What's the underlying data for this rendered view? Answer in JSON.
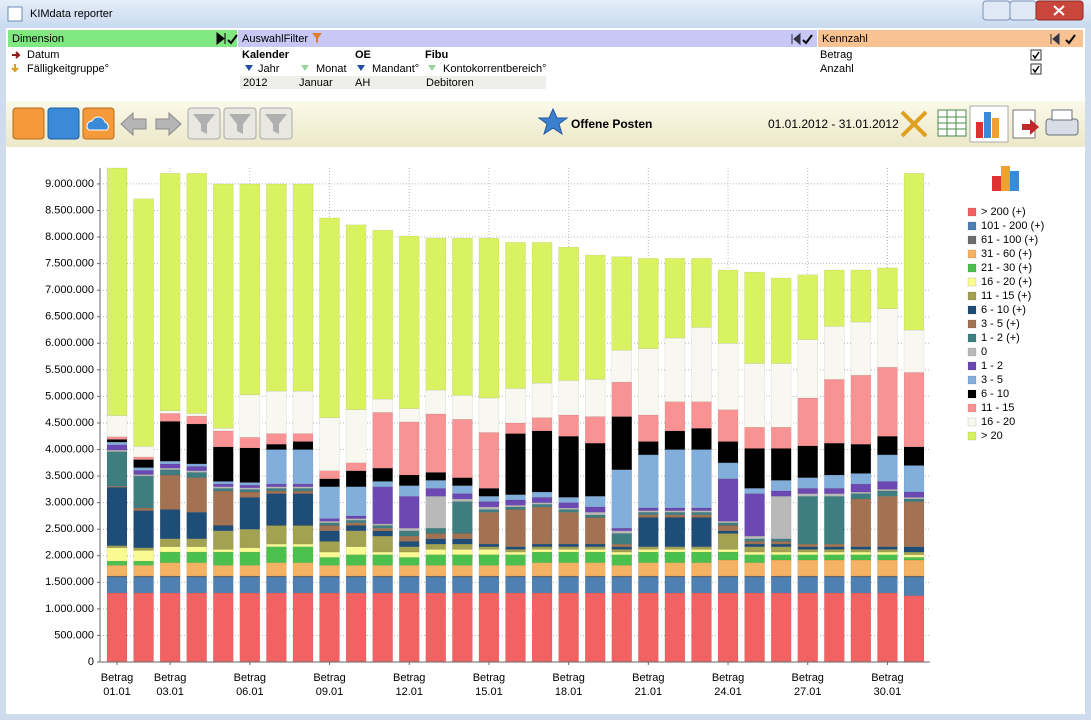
{
  "window": {
    "title": "KIMdata reporter"
  },
  "dimension": {
    "header": "Dimension",
    "items": [
      "Datum",
      "Fälligkeitgruppe°"
    ]
  },
  "filter": {
    "header": "AuswahlFilter",
    "groups": [
      {
        "title": "Kalender",
        "fields": [
          {
            "name": "Jahr",
            "value": "2012"
          },
          {
            "name": "Monat",
            "value": "Januar"
          }
        ]
      },
      {
        "title": "OE",
        "fields": [
          {
            "name": "Mandant°",
            "value": "AH"
          }
        ]
      },
      {
        "title": "Fibu",
        "fields": [
          {
            "name": "Kontokorrentbereich°",
            "value": "Debitoren"
          }
        ]
      }
    ]
  },
  "kennzahl": {
    "header": "Kennzahl",
    "items": [
      "Betrag",
      "Anzahl"
    ]
  },
  "toolbar": {
    "report": "Offene Posten",
    "period": "01.01.2012 - 31.01.2012"
  },
  "chart_data": {
    "type": "stacked_bar",
    "measure": "Betrag",
    "categories": [
      "01.01",
      null,
      "03.01",
      null,
      null,
      "06.01",
      null,
      null,
      "09.01",
      null,
      null,
      "12.01",
      null,
      null,
      "15.01",
      null,
      null,
      "18.01",
      null,
      null,
      "21.01",
      null,
      null,
      "24.01",
      null,
      null,
      "27.01",
      null,
      null,
      "30.01",
      null
    ],
    "ylim": [
      0,
      9300000
    ],
    "yticks": [
      0,
      {
        "value": 500000,
        "label": "500.000"
      },
      {
        "value": 1000000,
        "label": "1.000.000"
      },
      {
        "value": 1500000,
        "label": "1.500.000"
      },
      {
        "value": 2000000,
        "label": "2.000.000"
      },
      {
        "value": 2500000,
        "label": "2.500.000"
      },
      {
        "value": 3000000,
        "label": "3.000.000"
      },
      {
        "value": 3500000,
        "label": "3.500.000"
      },
      {
        "value": 4000000,
        "label": "4.000.000"
      },
      {
        "value": 4500000,
        "label": "4.500.000"
      },
      {
        "value": 5000000,
        "label": "5.000.000"
      },
      {
        "value": 5500000,
        "label": "5.500.000"
      },
      {
        "value": 6000000,
        "label": "6.000.000"
      },
      {
        "value": 6500000,
        "label": "6.500.000"
      },
      {
        "value": 7000000,
        "label": "7.000.000"
      },
      {
        "value": 7500000,
        "label": "7.500.000"
      },
      {
        "value": 8000000,
        "label": "8.000.000"
      },
      {
        "value": 8500000,
        "label": "8.500.000"
      },
      {
        "value": 9000000,
        "label": "9.000.000"
      }
    ],
    "grid": true,
    "legend": "right",
    "series": [
      {
        "name": "> 200 (+)",
        "color": "#f26262",
        "values": [
          1300000,
          1300000,
          1300000,
          1300000,
          1300000,
          1300000,
          1300000,
          1300000,
          1300000,
          1300000,
          1300000,
          1300000,
          1300000,
          1300000,
          1300000,
          1300000,
          1300000,
          1300000,
          1300000,
          1300000,
          1300000,
          1300000,
          1300000,
          1300000,
          1300000,
          1300000,
          1300000,
          1300000,
          1300000,
          1300000,
          1250000
        ]
      },
      {
        "name": "101 - 200 (+)",
        "color": "#4f80b2",
        "values": [
          300000,
          300000,
          300000,
          300000,
          300000,
          300000,
          300000,
          300000,
          300000,
          300000,
          300000,
          300000,
          300000,
          300000,
          300000,
          300000,
          300000,
          300000,
          300000,
          300000,
          300000,
          300000,
          300000,
          300000,
          300000,
          300000,
          300000,
          300000,
          300000,
          300000,
          350000
        ]
      },
      {
        "name": "61 - 100 (+)",
        "color": "#6e6e6e",
        "values": [
          20000,
          20000,
          20000,
          20000,
          20000,
          20000,
          20000,
          20000,
          20000,
          20000,
          20000,
          20000,
          20000,
          20000,
          20000,
          20000,
          20000,
          20000,
          20000,
          20000,
          20000,
          20000,
          20000,
          20000,
          20000,
          20000,
          20000,
          20000,
          20000,
          20000,
          20000
        ]
      },
      {
        "name": "31 - 60 (+)",
        "color": "#f5b262",
        "values": [
          200000,
          200000,
          250000,
          250000,
          200000,
          200000,
          250000,
          250000,
          200000,
          200000,
          200000,
          200000,
          200000,
          200000,
          200000,
          200000,
          250000,
          250000,
          250000,
          200000,
          250000,
          250000,
          250000,
          300000,
          250000,
          300000,
          300000,
          300000,
          300000,
          300000,
          300000
        ]
      },
      {
        "name": "21 - 30 (+)",
        "color": "#4cc04c",
        "values": [
          80000,
          80000,
          200000,
          200000,
          250000,
          250000,
          300000,
          300000,
          150000,
          200000,
          200000,
          150000,
          200000,
          200000,
          200000,
          200000,
          200000,
          200000,
          200000,
          200000,
          200000,
          200000,
          200000,
          150000,
          150000,
          100000,
          100000,
          100000,
          100000,
          100000,
          50000
        ]
      },
      {
        "name": "16 - 20 (+)",
        "color": "#fafa92",
        "values": [
          250000,
          200000,
          100000,
          100000,
          50000,
          80000,
          50000,
          50000,
          100000,
          150000,
          50000,
          100000,
          100000,
          100000,
          100000,
          50000,
          50000,
          50000,
          50000,
          50000,
          50000,
          50000,
          50000,
          50000,
          50000,
          50000,
          50000,
          50000,
          50000,
          50000,
          50000
        ]
      },
      {
        "name": "11 - 15 (+)",
        "color": "#a2a252",
        "values": [
          40000,
          50000,
          150000,
          150000,
          350000,
          350000,
          350000,
          350000,
          200000,
          300000,
          300000,
          100000,
          100000,
          100000,
          50000,
          50000,
          50000,
          50000,
          50000,
          50000,
          50000,
          50000,
          50000,
          300000,
          100000,
          100000,
          50000,
          50000,
          50000,
          50000,
          50000
        ]
      },
      {
        "name": "6 - 10 (+)",
        "color": "#1e4d78",
        "values": [
          1100000,
          700000,
          550000,
          500000,
          100000,
          600000,
          600000,
          600000,
          200000,
          100000,
          100000,
          100000,
          100000,
          100000,
          50000,
          50000,
          50000,
          50000,
          50000,
          50000,
          550000,
          550000,
          550000,
          50000,
          50000,
          50000,
          50000,
          50000,
          50000,
          50000,
          100000
        ]
      },
      {
        "name": "3 - 5 (+)",
        "color": "#a27252",
        "values": [
          20000,
          50000,
          650000,
          650000,
          650000,
          100000,
          50000,
          50000,
          100000,
          50000,
          50000,
          100000,
          100000,
          100000,
          600000,
          700000,
          700000,
          600000,
          500000,
          50000,
          50000,
          50000,
          50000,
          100000,
          50000,
          50000,
          50000,
          50000,
          900000,
          950000,
          850000
        ]
      },
      {
        "name": "1 - 2 (+)",
        "color": "#3e7e80",
        "values": [
          650000,
          600000,
          100000,
          100000,
          50000,
          50000,
          50000,
          50000,
          50000,
          50000,
          50000,
          100000,
          100000,
          600000,
          50000,
          50000,
          50000,
          50000,
          50000,
          200000,
          50000,
          50000,
          50000,
          50000,
          50000,
          50000,
          900000,
          900000,
          100000,
          100000,
          50000
        ]
      },
      {
        "name": "0",
        "color": "#b9b9b9",
        "values": [
          30000,
          30000,
          30000,
          30000,
          30000,
          30000,
          30000,
          30000,
          30000,
          30000,
          30000,
          50000,
          600000,
          50000,
          50000,
          30000,
          30000,
          30000,
          50000,
          50000,
          30000,
          30000,
          30000,
          30000,
          50000,
          800000,
          50000,
          50000,
          30000,
          30000,
          30000
        ]
      },
      {
        "name": "1 - 2",
        "color": "#6b48b2",
        "values": [
          100000,
          80000,
          80000,
          80000,
          50000,
          50000,
          50000,
          50000,
          50000,
          50000,
          700000,
          600000,
          150000,
          100000,
          100000,
          100000,
          100000,
          100000,
          100000,
          50000,
          50000,
          50000,
          50000,
          800000,
          800000,
          100000,
          100000,
          100000,
          150000,
          150000,
          100000
        ]
      },
      {
        "name": "3 - 5",
        "color": "#82aedb",
        "values": [
          50000,
          50000,
          50000,
          50000,
          50000,
          50000,
          650000,
          650000,
          600000,
          550000,
          100000,
          200000,
          150000,
          150000,
          100000,
          100000,
          100000,
          100000,
          200000,
          1100000,
          1000000,
          1100000,
          1100000,
          300000,
          100000,
          200000,
          200000,
          250000,
          200000,
          500000,
          500000
        ]
      },
      {
        "name": "6 - 10",
        "color": "#000000",
        "values": [
          50000,
          150000,
          750000,
          750000,
          650000,
          650000,
          100000,
          150000,
          150000,
          300000,
          250000,
          200000,
          150000,
          150000,
          150000,
          1150000,
          1150000,
          1150000,
          1000000,
          1000000,
          250000,
          350000,
          400000,
          400000,
          750000,
          600000,
          600000,
          600000,
          550000,
          350000,
          350000
        ]
      },
      {
        "name": "11 - 15",
        "color": "#f99393",
        "values": [
          50000,
          50000,
          150000,
          150000,
          300000,
          200000,
          200000,
          150000,
          150000,
          150000,
          1050000,
          1000000,
          1100000,
          1100000,
          1050000,
          200000,
          250000,
          400000,
          500000,
          650000,
          500000,
          550000,
          500000,
          600000,
          400000,
          400000,
          900000,
          1200000,
          1300000,
          1300000,
          1400000
        ]
      },
      {
        "name": "16 - 20",
        "color": "#f8f8f0",
        "values": [
          400000,
          200000,
          50000,
          50000,
          50000,
          800000,
          800000,
          800000,
          1000000,
          1000000,
          250000,
          250000,
          450000,
          450000,
          650000,
          650000,
          650000,
          650000,
          700000,
          600000,
          1250000,
          1200000,
          1400000,
          1250000,
          1200000,
          1200000,
          1100000,
          1000000,
          1000000,
          1100000,
          800000
        ]
      },
      {
        "name": "> 20",
        "color": "#d9f262",
        "values": [
          4660000,
          4660000,
          4470000,
          4520000,
          4600000,
          3970000,
          3900000,
          3900000,
          3760000,
          3480000,
          3180000,
          3250000,
          2860000,
          2960000,
          3010000,
          2750000,
          2650000,
          2510000,
          2340000,
          1760000,
          1700000,
          1500000,
          1300000,
          1380000,
          1720000,
          1610000,
          1220000,
          1060000,
          980000,
          770000,
          2950000
        ]
      }
    ]
  }
}
